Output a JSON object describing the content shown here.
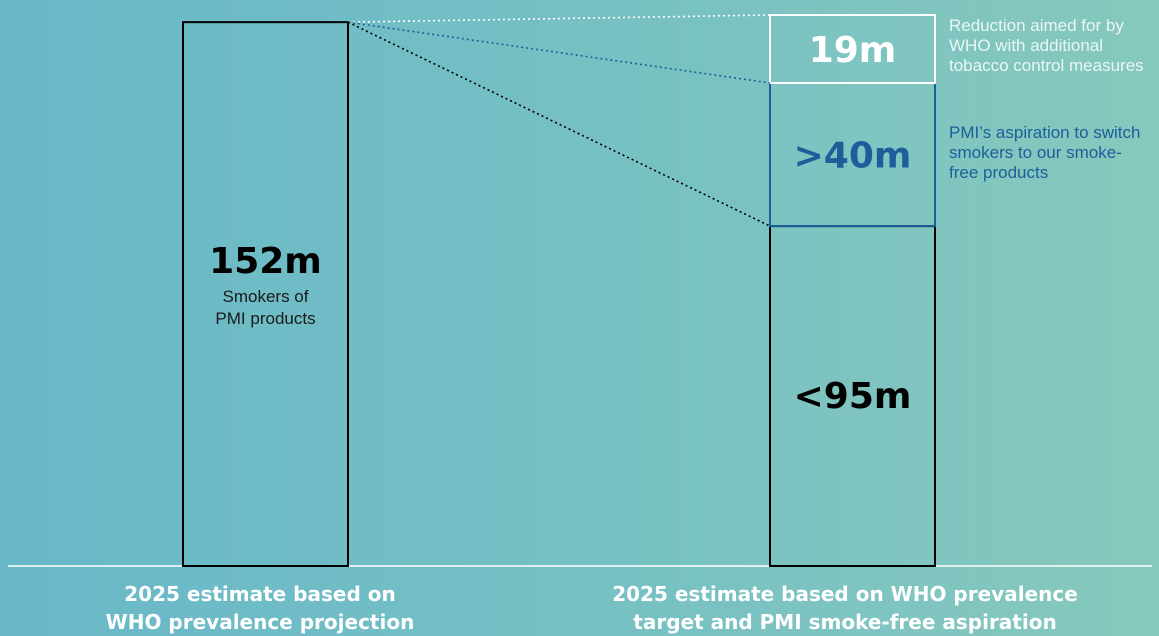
{
  "chart_data": {
    "type": "bar",
    "categories": [
      "2025 estimate based on WHO prevalence projection",
      "2025 estimate based on WHO prevalence target and PMI smoke-free aspiration"
    ],
    "series": [
      {
        "values": [
          152,
          95
        ],
        "labels": [
          "152m",
          "<95m"
        ],
        "color": "#000000"
      },
      {
        "values": [
          0,
          40
        ],
        "labels": [
          "",
          ">40m"
        ],
        "color": "#1d5e9a"
      },
      {
        "values": [
          0,
          19
        ],
        "labels": [
          "",
          "19m"
        ],
        "color": "#ffffff"
      }
    ],
    "sublabel": "Smokers of PMI products",
    "annotations": [
      "Reduction aimed for by WHO with additional tobacco control measures",
      "PMI’s aspiration to switch smokers to our smoke-free products"
    ],
    "stacked": true,
    "ylim": [
      0,
      154
    ],
    "grid": false
  },
  "labels": {
    "left_line1": "2025 estimate based on",
    "left_line2": "WHO prevalence projection",
    "right_line1": "2025 estimate based on WHO prevalence",
    "right_line2": "target and PMI smoke-free aspiration",
    "sub_line1": "Smokers of",
    "sub_line2": "PMI products",
    "ann_white": "Reduction aimed for by WHO with additional tobacco control measures",
    "ann_blue": "PMI’s aspiration to switch smokers to our smoke-free products"
  }
}
